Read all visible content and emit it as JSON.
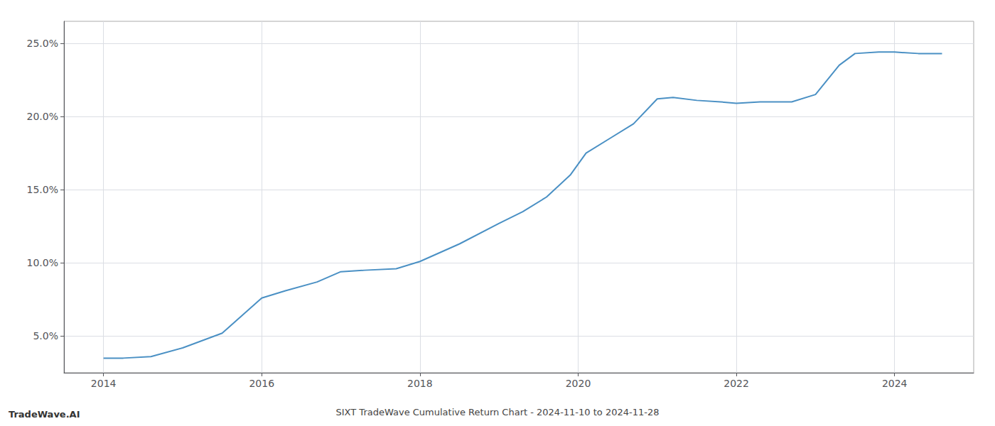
{
  "chart_data": {
    "type": "line",
    "title": "SIXT TradeWave Cumulative Return Chart - 2024-11-10 to 2024-11-28",
    "annotations": [
      "TradeWave.AI"
    ],
    "x": [
      2014.0,
      2014.25,
      2014.6,
      2015.0,
      2015.5,
      2016.0,
      2016.3,
      2016.7,
      2017.0,
      2017.3,
      2017.7,
      2018.0,
      2018.5,
      2019.0,
      2019.3,
      2019.6,
      2019.9,
      2020.1,
      2020.4,
      2020.7,
      2021.0,
      2021.2,
      2021.5,
      2021.8,
      2022.0,
      2022.3,
      2022.7,
      2023.0,
      2023.3,
      2023.5,
      2023.8,
      2024.0,
      2024.3,
      2024.6
    ],
    "values": [
      3.5,
      3.5,
      3.6,
      4.2,
      5.2,
      7.6,
      8.1,
      8.7,
      9.4,
      9.5,
      9.6,
      10.1,
      11.3,
      12.7,
      13.5,
      14.5,
      16.0,
      17.5,
      18.5,
      19.5,
      21.2,
      21.3,
      21.1,
      21.0,
      20.9,
      21.0,
      21.0,
      21.5,
      23.5,
      24.3,
      24.4,
      24.4,
      24.3,
      24.3
    ],
    "color": "#4a90c4",
    "xlim": [
      2013.5,
      2025.0
    ],
    "ylim": [
      2.5,
      26.5
    ],
    "xticks": [
      2014,
      2016,
      2018,
      2020,
      2022,
      2024
    ],
    "yticks": [
      {
        "value": 5.0,
        "label": "5.0%"
      },
      {
        "value": 10.0,
        "label": "10.0%"
      },
      {
        "value": 15.0,
        "label": "15.0%"
      },
      {
        "value": 20.0,
        "label": "20.0%"
      },
      {
        "value": 25.0,
        "label": "25.0%"
      }
    ],
    "grid": true
  }
}
